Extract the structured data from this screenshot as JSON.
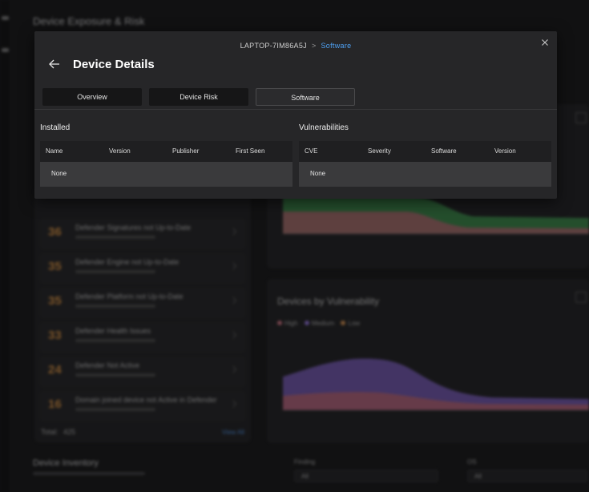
{
  "background": {
    "title": "Device Exposure & Risk",
    "issues": [
      {
        "count": "36",
        "title": "Defender Signatures not Up-to-Date"
      },
      {
        "count": "35",
        "title": "Defender Engine not Up-to-Date"
      },
      {
        "count": "35",
        "title": "Defender Platform not Up-to-Date"
      },
      {
        "count": "33",
        "title": "Defender Health Issues"
      },
      {
        "count": "24",
        "title": "Defender Not Active"
      },
      {
        "count": "16",
        "title": "Domain joined device not Active in Defender"
      }
    ],
    "total_label": "Total:",
    "total_value": "425",
    "view_all": "View All",
    "chart2_title": "Devices by Vulnerability",
    "legend": [
      {
        "label": "High",
        "color": "#c46b7a"
      },
      {
        "label": "Medium",
        "color": "#8a6bd0"
      },
      {
        "label": "Low",
        "color": "#c98a4a"
      }
    ],
    "inventory_title": "Device Inventory",
    "filter1_label": "Finding",
    "filter2_label": "OS",
    "filter1_value": "All",
    "filter2_value": "All"
  },
  "modal": {
    "breadcrumb_device": "LAPTOP-7IM86A5J",
    "breadcrumb_separator": ">",
    "breadcrumb_current": "Software",
    "title": "Device Details",
    "tabs": [
      "Overview",
      "Device Risk",
      "Software"
    ],
    "installed": {
      "label": "Installed",
      "columns": [
        "Name",
        "Version",
        "Publisher",
        "First Seen"
      ],
      "empty": "None"
    },
    "vulnerabilities": {
      "label": "Vulnerabilities",
      "columns": [
        "CVE",
        "Severity",
        "Software",
        "Version"
      ],
      "empty": "None"
    }
  },
  "colors": {
    "accent": "#4ea0f2",
    "modal_bg": "#262628"
  }
}
